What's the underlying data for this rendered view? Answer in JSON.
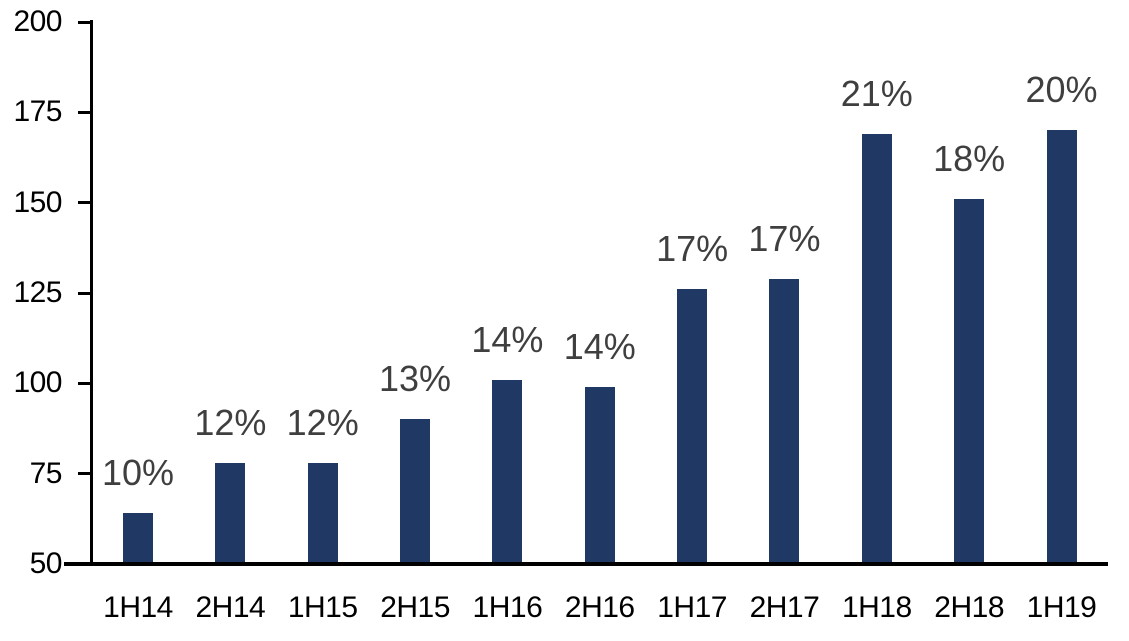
{
  "chart_data": {
    "type": "bar",
    "title": "",
    "xlabel": "",
    "ylabel": "",
    "categories": [
      "1H14",
      "2H14",
      "1H15",
      "2H15",
      "1H16",
      "2H16",
      "1H17",
      "2H17",
      "1H18",
      "2H18",
      "1H19"
    ],
    "values": [
      64,
      78,
      78,
      90,
      101,
      99,
      126,
      129,
      169,
      151,
      170
    ],
    "data_labels": [
      "10%",
      "12%",
      "12%",
      "13%",
      "14%",
      "14%",
      "17%",
      "17%",
      "21%",
      "18%",
      "20%"
    ],
    "ylim": [
      50,
      200
    ],
    "yticks": [
      50,
      75,
      100,
      125,
      150,
      175,
      200
    ],
    "grid": false,
    "legend": false,
    "colors": {
      "bar_fill": "#1f3864",
      "data_label_text": "#3f3f3f",
      "axis_line": "#000000",
      "axis_text": "#000000"
    }
  }
}
